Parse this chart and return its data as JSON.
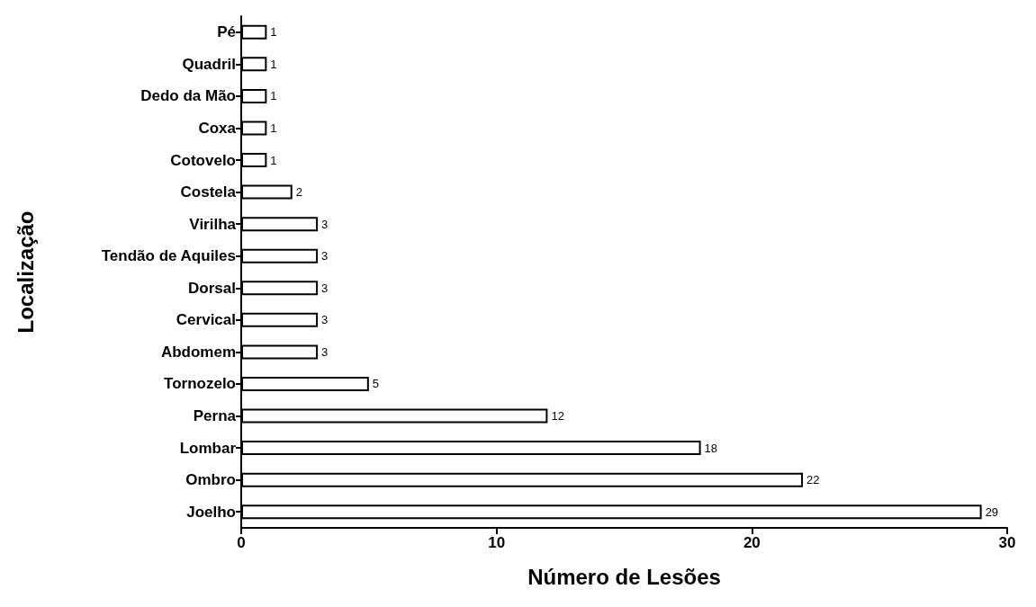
{
  "chart_data": {
    "type": "bar",
    "orientation": "horizontal",
    "xlabel": "Número de Lesões",
    "ylabel": "Localização",
    "categories": [
      "Pé",
      "Quadril",
      "Dedo da Mão",
      "Coxa",
      "Cotovelo",
      "Costela",
      "Virilha",
      "Tendão de Aquiles",
      "Dorsal",
      "Cervical",
      "Abdomem",
      "Tornozelo",
      "Perna",
      "Lombar",
      "Ombro",
      "Joelho"
    ],
    "values": [
      1,
      1,
      1,
      1,
      1,
      2,
      3,
      3,
      3,
      3,
      3,
      5,
      12,
      18,
      22,
      29
    ],
    "color": "#ffffff",
    "xlim": [
      0,
      30
    ],
    "xticks": [
      0,
      10,
      20,
      30
    ],
    "data_labels": true,
    "grid": false
  }
}
